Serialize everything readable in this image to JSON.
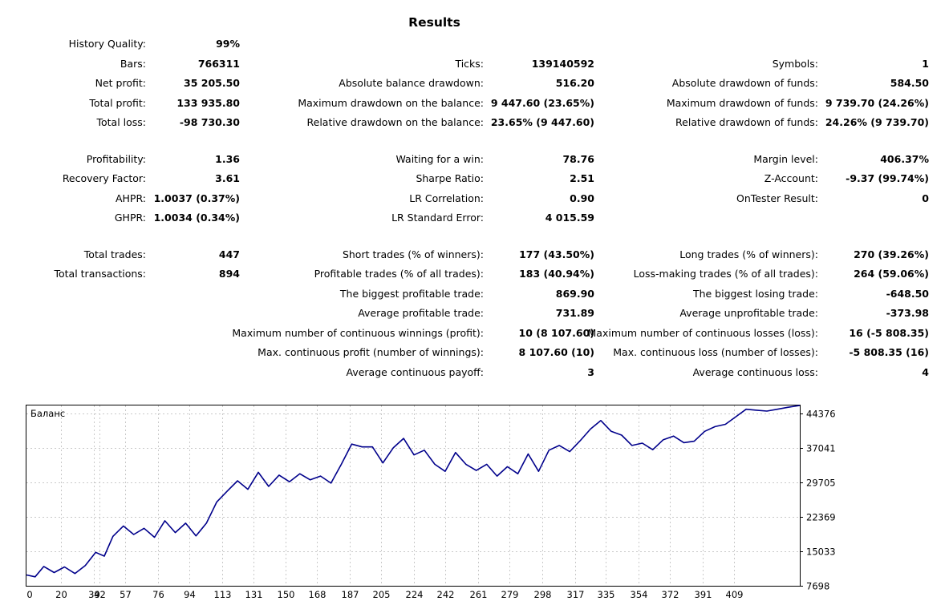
{
  "report": {
    "title": "Results",
    "col1": [
      {
        "label": "History Quality:",
        "value": "99%"
      },
      {
        "label": "Bars:",
        "value": "766311"
      },
      {
        "label": "Net profit:",
        "value": "35 205.50"
      },
      {
        "label": "Total profit:",
        "value": "133 935.80"
      },
      {
        "label": "Total loss:",
        "value": "-98 730.30"
      },
      {
        "label": "Profitability:",
        "value": "1.36"
      },
      {
        "label": "Recovery Factor:",
        "value": "3.61"
      },
      {
        "label": "AHPR:",
        "value": "1.0037 (0.37%)"
      },
      {
        "label": "GHPR:",
        "value": "1.0034 (0.34%)"
      },
      {
        "label": "Total trades:",
        "value": "447"
      },
      {
        "label": "Total transactions:",
        "value": "894"
      }
    ],
    "col2": [
      {
        "label": "Ticks:",
        "value": "139140592"
      },
      {
        "label": "Absolute balance drawdown:",
        "value": "516.20"
      },
      {
        "label": "Maximum drawdown on the balance:",
        "value": "9 447.60 (23.65%)"
      },
      {
        "label": "Relative drawdown on the balance:",
        "value": "23.65% (9 447.60)"
      },
      {
        "label": "Waiting for a win:",
        "value": "78.76"
      },
      {
        "label": "Sharpe Ratio:",
        "value": "2.51"
      },
      {
        "label": "LR Correlation:",
        "value": "0.90"
      },
      {
        "label": "LR Standard Error:",
        "value": "4 015.59"
      },
      {
        "label": "Short trades (% of winners):",
        "value": "177 (43.50%)"
      },
      {
        "label": "Profitable trades (% of all trades):",
        "value": "183 (40.94%)"
      },
      {
        "label": "The biggest profitable trade:",
        "value": "869.90"
      },
      {
        "label": "Average profitable trade:",
        "value": "731.89"
      },
      {
        "label": "Maximum number of continuous winnings (profit):",
        "value": "10 (8 107.60)"
      },
      {
        "label": "Max. continuous profit (number of winnings):",
        "value": "8 107.60 (10)"
      },
      {
        "label": "Average continuous payoff:",
        "value": "3"
      }
    ],
    "col3": [
      {
        "label": "Symbols:",
        "value": "1"
      },
      {
        "label": "Absolute drawdown of funds:",
        "value": "584.50"
      },
      {
        "label": "Maximum drawdown of funds:",
        "value": "9 739.70 (24.26%)"
      },
      {
        "label": "Relative drawdown of funds:",
        "value": "24.26% (9 739.70)"
      },
      {
        "label": "Margin level:",
        "value": "406.37%"
      },
      {
        "label": "Z-Account:",
        "value": "-9.37 (99.74%)"
      },
      {
        "label": "OnTester Result:",
        "value": "0"
      },
      {
        "label": "Long trades (% of winners):",
        "value": "270 (39.26%)"
      },
      {
        "label": "Loss-making trades (% of all trades):",
        "value": "264 (59.06%)"
      },
      {
        "label": "The biggest losing trade:",
        "value": "-648.50"
      },
      {
        "label": "Average unprofitable trade:",
        "value": "-373.98"
      },
      {
        "label": "Maximum number of continuous losses (loss):",
        "value": "16 (-5 808.35)"
      },
      {
        "label": "Max. continuous loss (number of losses):",
        "value": "-5 808.35 (16)"
      },
      {
        "label": "Average continuous loss:",
        "value": "4"
      }
    ]
  },
  "chart_data": {
    "type": "line",
    "title": "Баланс",
    "series_name": "Баланс",
    "color": "#00008b",
    "ylim": [
      7698,
      46000
    ],
    "y_ticks": [
      "7698",
      "15033",
      "22369",
      "29705",
      "37041",
      "44376"
    ],
    "y_tick_values": [
      7698,
      15033,
      22369,
      29705,
      37041,
      44376
    ],
    "x_ticks": [
      "0",
      "20",
      "39",
      "57",
      "76",
      "94",
      "113",
      "131",
      "150",
      "168",
      "187",
      "205",
      "224",
      "242",
      "261",
      "279",
      "298",
      "317",
      "335",
      "354",
      "372",
      "391",
      "409",
      "42"
    ],
    "xlim": [
      0,
      447
    ],
    "x": [
      0,
      5,
      10,
      16,
      22,
      28,
      34,
      40,
      45,
      50,
      56,
      62,
      68,
      74,
      80,
      86,
      92,
      98,
      104,
      110,
      116,
      122,
      128,
      134,
      140,
      146,
      152,
      158,
      164,
      170,
      176,
      182,
      188,
      194,
      200,
      206,
      212,
      218,
      224,
      230,
      236,
      242,
      248,
      254,
      260,
      266,
      272,
      278,
      284,
      290,
      296,
      302,
      308,
      314,
      320,
      326,
      332,
      338,
      344,
      350,
      356,
      362,
      368,
      374,
      380,
      386,
      392,
      398,
      404,
      410,
      416,
      422,
      428,
      434,
      440,
      447
    ],
    "values": [
      10000,
      9600,
      11800,
      10500,
      11700,
      10300,
      12000,
      14800,
      14000,
      18200,
      20400,
      18600,
      19900,
      18000,
      21500,
      19000,
      21000,
      18300,
      21000,
      25500,
      27800,
      30000,
      28200,
      31800,
      28800,
      31200,
      29800,
      31500,
      30200,
      31000,
      29500,
      33500,
      37800,
      37200,
      37200,
      33800,
      37000,
      39000,
      35500,
      36500,
      33500,
      32000,
      36000,
      33500,
      32200,
      33500,
      31000,
      33000,
      31500,
      35700,
      32000,
      36500,
      37500,
      36200,
      38500,
      41000,
      42800,
      40500,
      39700,
      37500,
      38000,
      36600,
      38700,
      39500,
      38100,
      38400,
      40500,
      41500,
      42000,
      43600,
      45200,
      45000,
      44800,
      45200,
      45600,
      46000
    ]
  }
}
